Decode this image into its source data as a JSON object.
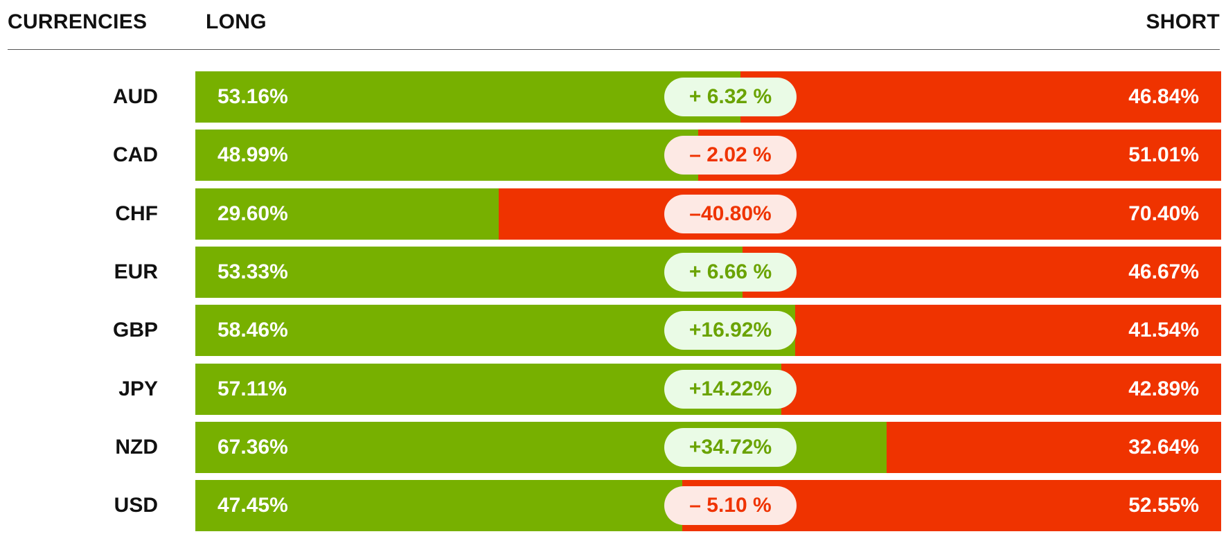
{
  "header": {
    "currencies": "CURRENCIES",
    "long": "LONG",
    "short": "SHORT"
  },
  "colors": {
    "long": "#77b000",
    "short": "#ef3300",
    "pill_positive_bg": "#eafbe6",
    "pill_negative_bg": "#fde9e4"
  },
  "chart_data": {
    "type": "bar",
    "stacked": true,
    "orientation": "horizontal",
    "categories": [
      "AUD",
      "CAD",
      "CHF",
      "EUR",
      "GBP",
      "JPY",
      "NZD",
      "USD"
    ],
    "series": [
      {
        "name": "LONG",
        "values": [
          53.16,
          48.99,
          29.6,
          53.33,
          58.46,
          57.11,
          67.36,
          47.45
        ]
      },
      {
        "name": "SHORT",
        "values": [
          46.84,
          51.01,
          70.4,
          46.67,
          41.54,
          42.89,
          32.64,
          52.55
        ]
      }
    ],
    "long_labels": [
      "53.16%",
      "48.99%",
      "29.60%",
      "53.33%",
      "58.46%",
      "57.11%",
      "67.36%",
      "47.45%"
    ],
    "short_labels": [
      "46.84%",
      "51.01%",
      "70.40%",
      "46.67%",
      "41.54%",
      "42.89%",
      "32.64%",
      "52.55%"
    ],
    "net": [
      6.32,
      -2.02,
      -40.8,
      6.66,
      16.92,
      14.22,
      34.72,
      -5.1
    ],
    "net_labels": [
      "+ 6.32 %",
      "– 2.02 %",
      "–40.80%",
      "+ 6.66 %",
      "+16.92%",
      "+14.22%",
      "+34.72%",
      "– 5.10 %"
    ],
    "xlim": [
      0,
      100
    ]
  }
}
